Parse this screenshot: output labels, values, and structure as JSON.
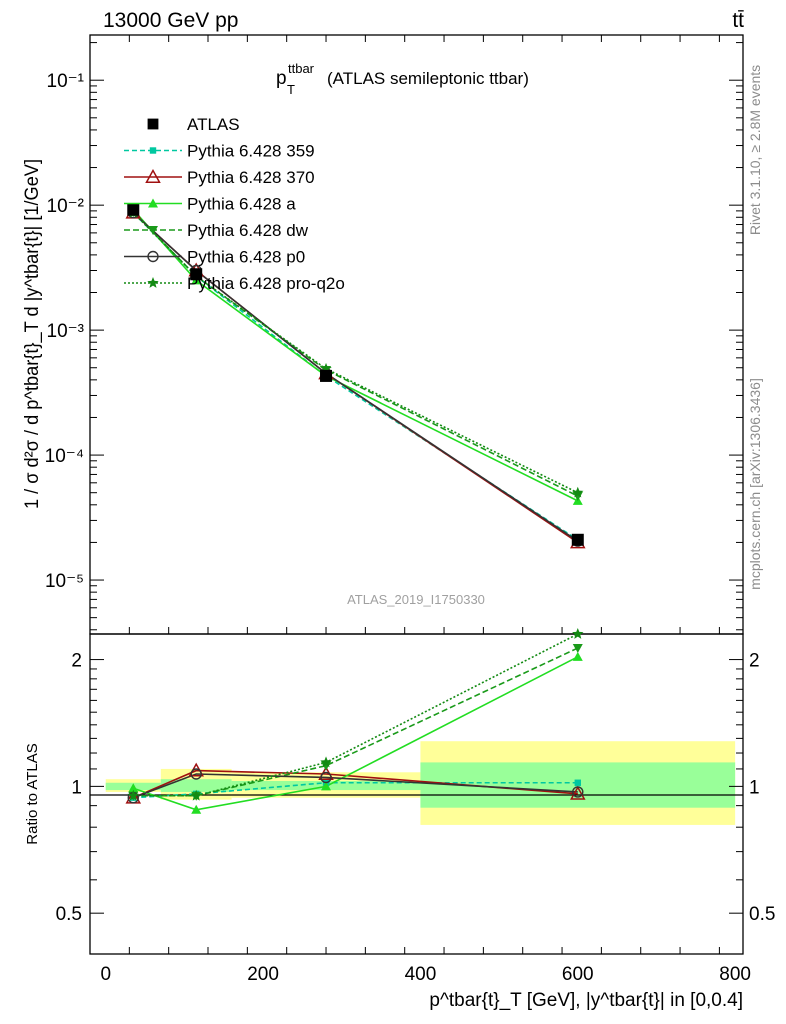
{
  "header": {
    "left": "13000 GeV pp",
    "right": "tt̄"
  },
  "plot_title": {
    "main": "p",
    "sub": "T",
    "sup": "ttbar",
    "rest": "(ATLAS semileptonic ttbar)"
  },
  "side": {
    "rivet": "Rivet 3.1.10, ≥ 2.8M events",
    "mcplots": "mcplots.cern.ch [arXiv:1306.3436]"
  },
  "watermark": "ATLAS_2019_I1750330",
  "axes": {
    "main_ylabel": "1 / σ d²σ / d p^tbar{t}_T d |y^tbar{t}| [1/GeV]",
    "ratio_ylabel": "Ratio to ATLAS",
    "xlabel": "p^tbar{t}_T [GeV], |y^tbar{t}| in [0,0.4]",
    "main_y_ticks": [
      "10⁻⁵",
      "10⁻⁴",
      "10⁻³",
      "10⁻²",
      "10⁻¹"
    ],
    "ratio_y_ticks": [
      "0.5",
      "1",
      "2"
    ],
    "x_ticks": [
      "0",
      "200",
      "400",
      "600",
      "800"
    ]
  },
  "chart_data": [
    {
      "type": "line",
      "panel": "main",
      "title": "p_T^ttbar (ATLAS semileptonic ttbar)",
      "xlabel": "p^tbar{t}_T [GeV], |y^tbar{t}| in [0,0.4]",
      "ylabel": "1 / σ d²σ / d p^tbar{t}_T d |y^tbar{t}| [1/GeV]",
      "xlim": [
        -20,
        810
      ],
      "ylim": [
        3.7e-06,
        0.23
      ],
      "yscale": "log",
      "legend_position": "top-left",
      "x": [
        35,
        115,
        280,
        600
      ],
      "data": {
        "name": "ATLAS",
        "values": [
          0.0092,
          0.0028,
          0.00043,
          2.1e-05
        ],
        "color": "#000000",
        "marker": "square"
      },
      "series": [
        {
          "name": "Pythia 6.428 359",
          "values": [
            0.0087,
            0.0027,
            0.00043,
            2.1e-05
          ],
          "color": "#00c8a0",
          "dash": "5,3",
          "marker": "square-small"
        },
        {
          "name": "Pythia 6.428 370",
          "values": [
            0.0087,
            0.003,
            0.00045,
            2e-05
          ],
          "color": "#a01010",
          "dash": "",
          "marker": "triangle-open"
        },
        {
          "name": "Pythia 6.428 a",
          "values": [
            0.0092,
            0.0025,
            0.00043,
            4.3e-05
          ],
          "color": "#22dd22",
          "dash": "",
          "marker": "triangle"
        },
        {
          "name": "Pythia 6.428 dw",
          "values": [
            0.0088,
            0.0027,
            0.00048,
            4.7e-05
          ],
          "color": "#1a9a1a",
          "dash": "6,3",
          "marker": "triangle-down"
        },
        {
          "name": "Pythia 6.428 p0",
          "values": [
            0.0087,
            0.003,
            0.00045,
            2.05e-05
          ],
          "color": "#333333",
          "dash": "",
          "marker": "circle-open"
        },
        {
          "name": "Pythia 6.428 pro-q2o",
          "values": [
            0.0087,
            0.0027,
            0.00049,
            5e-05
          ],
          "color": "#138a13",
          "dash": "2,2",
          "marker": "star"
        }
      ]
    },
    {
      "type": "line",
      "panel": "ratio",
      "ylabel": "Ratio to ATLAS",
      "xlabel": "p^tbar{t}_T [GeV], |y^tbar{t}| in [0,0.4]",
      "xlim": [
        -20,
        810
      ],
      "ylim": [
        0.4,
        2.3
      ],
      "yscale": "log",
      "x": [
        35,
        115,
        280,
        600
      ],
      "bins": [
        {
          "x0": 0,
          "x1": 70,
          "stat": [
            0.98,
            1.02
          ],
          "total": [
            0.97,
            1.04
          ]
        },
        {
          "x0": 70,
          "x1": 160,
          "stat": [
            0.97,
            1.04
          ],
          "total": [
            0.93,
            1.1
          ]
        },
        {
          "x0": 160,
          "x1": 400,
          "stat": [
            0.98,
            1.03
          ],
          "total": [
            0.94,
            1.08
          ]
        },
        {
          "x0": 400,
          "x1": 800,
          "stat": [
            0.89,
            1.14
          ],
          "total": [
            0.81,
            1.28
          ]
        }
      ],
      "series": [
        {
          "name": "Pythia 6.428 359",
          "values": [
            0.94,
            0.96,
            1.02,
            1.02
          ],
          "color": "#00c8a0",
          "dash": "5,3",
          "marker": "square-small"
        },
        {
          "name": "Pythia 6.428 370",
          "values": [
            0.94,
            1.09,
            1.07,
            0.96
          ],
          "color": "#a01010",
          "dash": "",
          "marker": "triangle-open"
        },
        {
          "name": "Pythia 6.428 a",
          "values": [
            0.99,
            0.88,
            1.0,
            2.03
          ],
          "color": "#22dd22",
          "dash": "",
          "marker": "triangle"
        },
        {
          "name": "Pythia 6.428 dw",
          "values": [
            0.95,
            0.95,
            1.12,
            2.13
          ],
          "color": "#1a9a1a",
          "dash": "6,3",
          "marker": "triangle-down"
        },
        {
          "name": "Pythia 6.428 p0",
          "values": [
            0.94,
            1.07,
            1.05,
            0.97
          ],
          "color": "#333333",
          "dash": "",
          "marker": "circle-open"
        },
        {
          "name": "Pythia 6.428 pro-q2o",
          "values": [
            0.95,
            0.95,
            1.14,
            2.3
          ],
          "color": "#138a13",
          "dash": "2,2",
          "marker": "star"
        }
      ]
    }
  ]
}
